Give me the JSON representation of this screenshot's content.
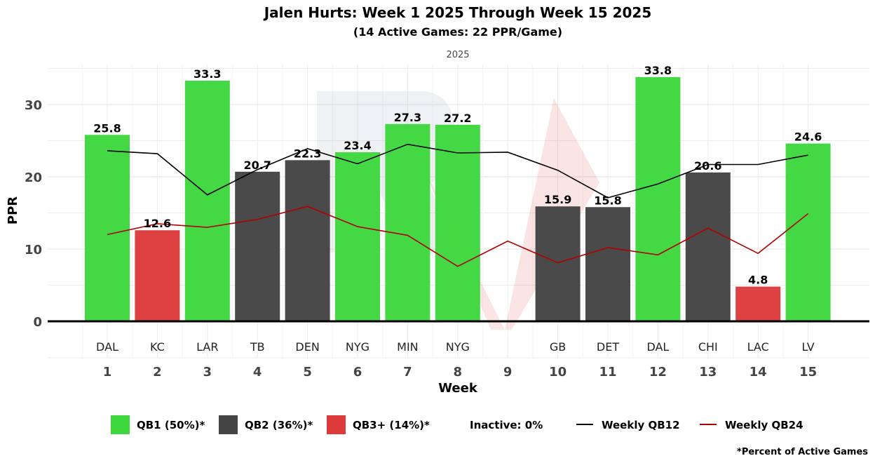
{
  "chart_data": {
    "type": "bar",
    "title": "Jalen Hurts: Week 1 2025 Through Week 15 2025",
    "subtitle": "(14 Active Games: 22 PPR/Game)",
    "facet_label": "2025",
    "xlabel": "Week",
    "ylabel": "PPR",
    "ylim": [
      0,
      35
    ],
    "yticks": [
      0,
      10,
      20,
      30
    ],
    "grid": true,
    "weeks": [
      1,
      2,
      3,
      4,
      5,
      6,
      7,
      8,
      9,
      10,
      11,
      12,
      13,
      14,
      15
    ],
    "opponents": [
      "DAL",
      "KC",
      "LAR",
      "TB",
      "DEN",
      "NYG",
      "MIN",
      "NYG",
      "",
      "GB",
      "DET",
      "DAL",
      "CHI",
      "LAC",
      "LV"
    ],
    "values": [
      25.8,
      12.6,
      33.3,
      20.7,
      22.3,
      23.4,
      27.3,
      27.2,
      null,
      15.9,
      15.8,
      33.8,
      20.6,
      4.8,
      24.6
    ],
    "tiers": [
      "QB1",
      "QB3+",
      "QB1",
      "QB2",
      "QB2",
      "QB1",
      "QB1",
      "QB1",
      null,
      "QB2",
      "QB2",
      "QB1",
      "QB2",
      "QB3+",
      "QB1"
    ],
    "series": [
      {
        "name": "Weekly QB12",
        "color": "#000000",
        "values": [
          23.6,
          23.2,
          17.5,
          21.0,
          23.9,
          21.8,
          24.5,
          23.3,
          23.4,
          20.9,
          17.1,
          19.0,
          21.7,
          21.7,
          23.0
        ]
      },
      {
        "name": "Weekly QB24",
        "color": "#b00000",
        "values": [
          12.0,
          13.5,
          13.0,
          14.1,
          15.9,
          13.1,
          11.9,
          7.6,
          11.1,
          8.1,
          10.2,
          9.2,
          12.9,
          9.4,
          14.9
        ]
      }
    ],
    "tier_colors": {
      "QB1": "#3ed83e",
      "QB2": "#444444",
      "QB3+": "#dd3b3b"
    },
    "legend": {
      "placement": "bottom",
      "items": [
        {
          "label": "QB1 (50%)*",
          "kind": "box",
          "tier": "QB1"
        },
        {
          "label": "QB2 (36%)*",
          "kind": "box",
          "tier": "QB2"
        },
        {
          "label": "QB3+ (14%)*",
          "kind": "box",
          "tier": "QB3+"
        },
        {
          "label": "Inactive: 0%",
          "kind": "text"
        },
        {
          "label": "Weekly QB12",
          "kind": "line",
          "color": "#000000"
        },
        {
          "label": "Weekly QB24",
          "kind": "line",
          "color": "#b00000"
        }
      ]
    },
    "footnote": "*Percent of Active Games"
  }
}
